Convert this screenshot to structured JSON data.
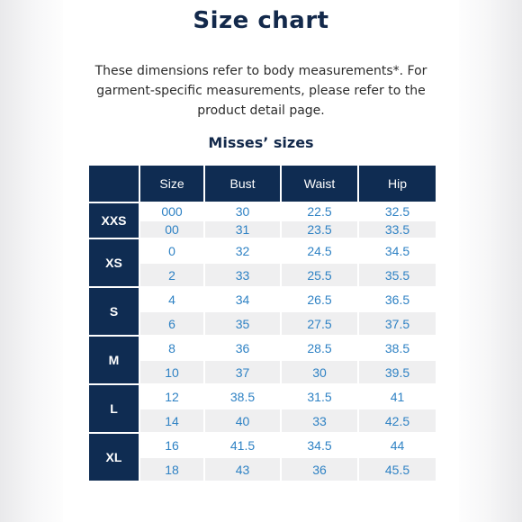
{
  "title": "Size chart",
  "intro": "These dimensions refer to body measurements*. For garment-specific measurements, please refer to the product detail page.",
  "subtitle": "Misses’ sizes",
  "table": {
    "headers": [
      "",
      "Size",
      "Bust",
      "Waist",
      "Hip"
    ],
    "groups": [
      {
        "label": "XXS",
        "rows": [
          [
            "000",
            "30",
            "22.5",
            "32.5"
          ],
          [
            "00",
            "31",
            "23.5",
            "33.5"
          ]
        ]
      },
      {
        "label": "XS",
        "rows": [
          [
            "0",
            "32",
            "24.5",
            "34.5"
          ],
          [
            "2",
            "33",
            "25.5",
            "35.5"
          ]
        ]
      },
      {
        "label": "S",
        "rows": [
          [
            "4",
            "34",
            "26.5",
            "36.5"
          ],
          [
            "6",
            "35",
            "27.5",
            "37.5"
          ]
        ]
      },
      {
        "label": "M",
        "rows": [
          [
            "8",
            "36",
            "28.5",
            "38.5"
          ],
          [
            "10",
            "37",
            "30",
            "39.5"
          ]
        ]
      },
      {
        "label": "L",
        "rows": [
          [
            "12",
            "38.5",
            "31.5",
            "41"
          ],
          [
            "14",
            "40",
            "33",
            "42.5"
          ]
        ]
      },
      {
        "label": "XL",
        "rows": [
          [
            "16",
            "41.5",
            "34.5",
            "44"
          ],
          [
            "18",
            "43",
            "36",
            "45.5"
          ]
        ]
      }
    ]
  },
  "colors": {
    "header_bg": "#0f2c52",
    "title": "#13294b",
    "value_text": "#2f82c4",
    "stripe": "#efeff0"
  }
}
